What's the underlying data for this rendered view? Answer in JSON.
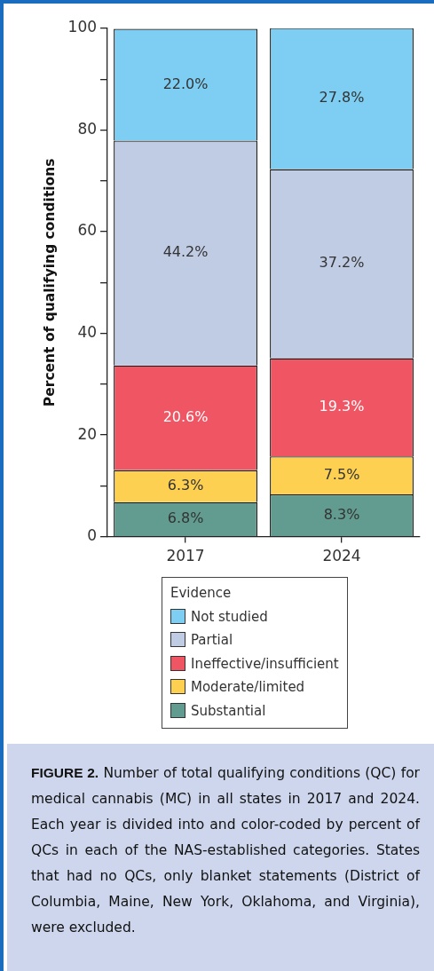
{
  "chart_data": {
    "type": "bar",
    "stacked": true,
    "ylabel": "Percent of qualifying conditions",
    "legend_title": "Evidence",
    "legend": "bottom",
    "categories": [
      "2017",
      "2024"
    ],
    "series": [
      {
        "name": "Substantial",
        "color": "#629c90",
        "values": [
          6.8,
          8.3
        ],
        "value_labels": [
          "6.8%",
          "8.3%"
        ]
      },
      {
        "name": "Moderate/limited",
        "color": "#fdd052",
        "values": [
          6.3,
          7.5
        ],
        "value_labels": [
          "6.3%",
          "7.5%"
        ]
      },
      {
        "name": "Ineffective/insufficient",
        "color": "#ef5563",
        "values": [
          20.6,
          19.3
        ],
        "value_labels": [
          "20.6%",
          "19.3%"
        ]
      },
      {
        "name": "Partial",
        "color": "#c0cce4",
        "values": [
          44.2,
          37.2
        ],
        "value_labels": [
          "44.2%",
          "37.2%"
        ]
      },
      {
        "name": "Not studied",
        "color": "#7ecdf2",
        "values": [
          22.0,
          27.8
        ],
        "value_labels": [
          "22.0%",
          "27.8%"
        ]
      }
    ],
    "ylim": [
      0,
      100
    ],
    "yticks": [
      0,
      {
        "value": 10,
        "label": null
      },
      20,
      {
        "value": 30,
        "label": null
      },
      40,
      {
        "value": 50,
        "label": null
      },
      60,
      {
        "value": 70,
        "label": null
      },
      80,
      {
        "value": 90,
        "label": null
      },
      100
    ],
    "grid": false,
    "annotations": [
      "FIGURE 2.",
      "Number of total qualifying conditions (QC) for medical cannabis (MC) in all states in 2017 and 2024. Each year is divided into and color-coded by percent of QCs in each of the NAS-established categories. States that had no QCs, only blanket statements (District of Columbia, Maine, New York, Oklahoma, and Virginia), were excluded."
    ]
  }
}
